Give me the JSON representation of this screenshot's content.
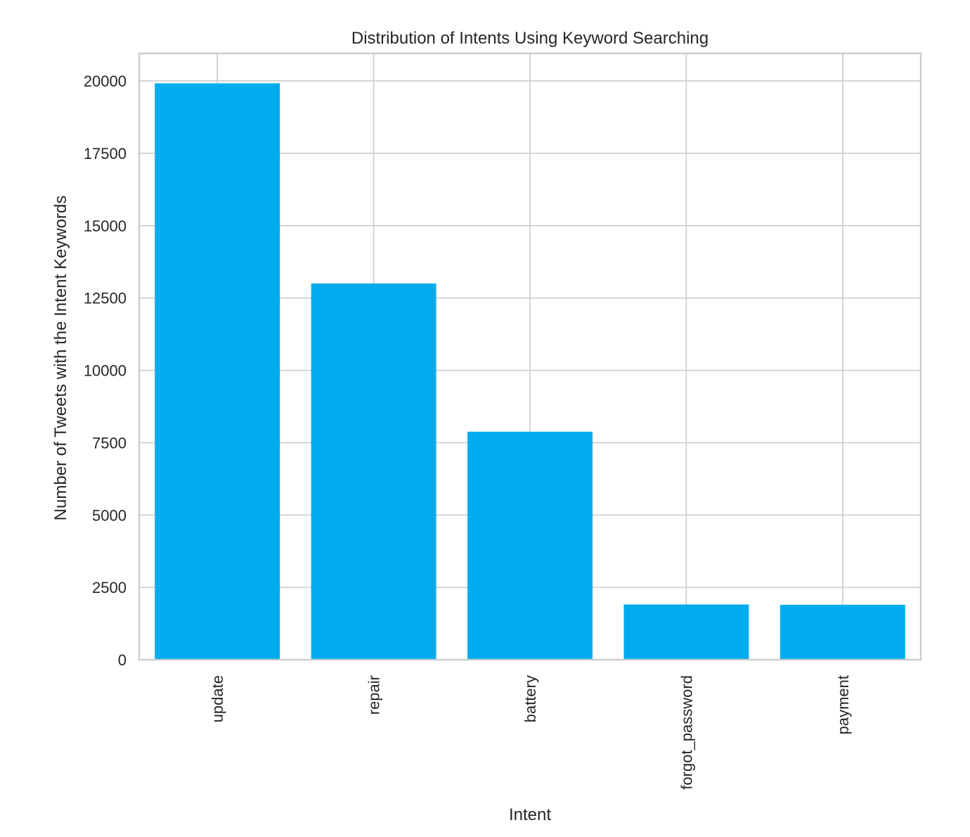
{
  "chart_data": {
    "type": "bar",
    "title": "Distribution of Intents Using Keyword Searching",
    "xlabel": "Intent",
    "ylabel": "Number of Tweets with the Intent Keywords",
    "categories": [
      "update",
      "repair",
      "battery",
      "forgot_password",
      "payment"
    ],
    "values": [
      19920,
      13000,
      7880,
      1910,
      1900
    ],
    "ylim": [
      0,
      20950
    ],
    "yticks": [
      0,
      2500,
      5000,
      7500,
      10000,
      12500,
      15000,
      17500,
      20000
    ],
    "ytick_labels": [
      "0",
      "2500",
      "5000",
      "7500",
      "10000",
      "12500",
      "15000",
      "17500",
      "20000"
    ],
    "bar_color": "#00acee",
    "grid": true,
    "x_tick_rotation": 90
  }
}
